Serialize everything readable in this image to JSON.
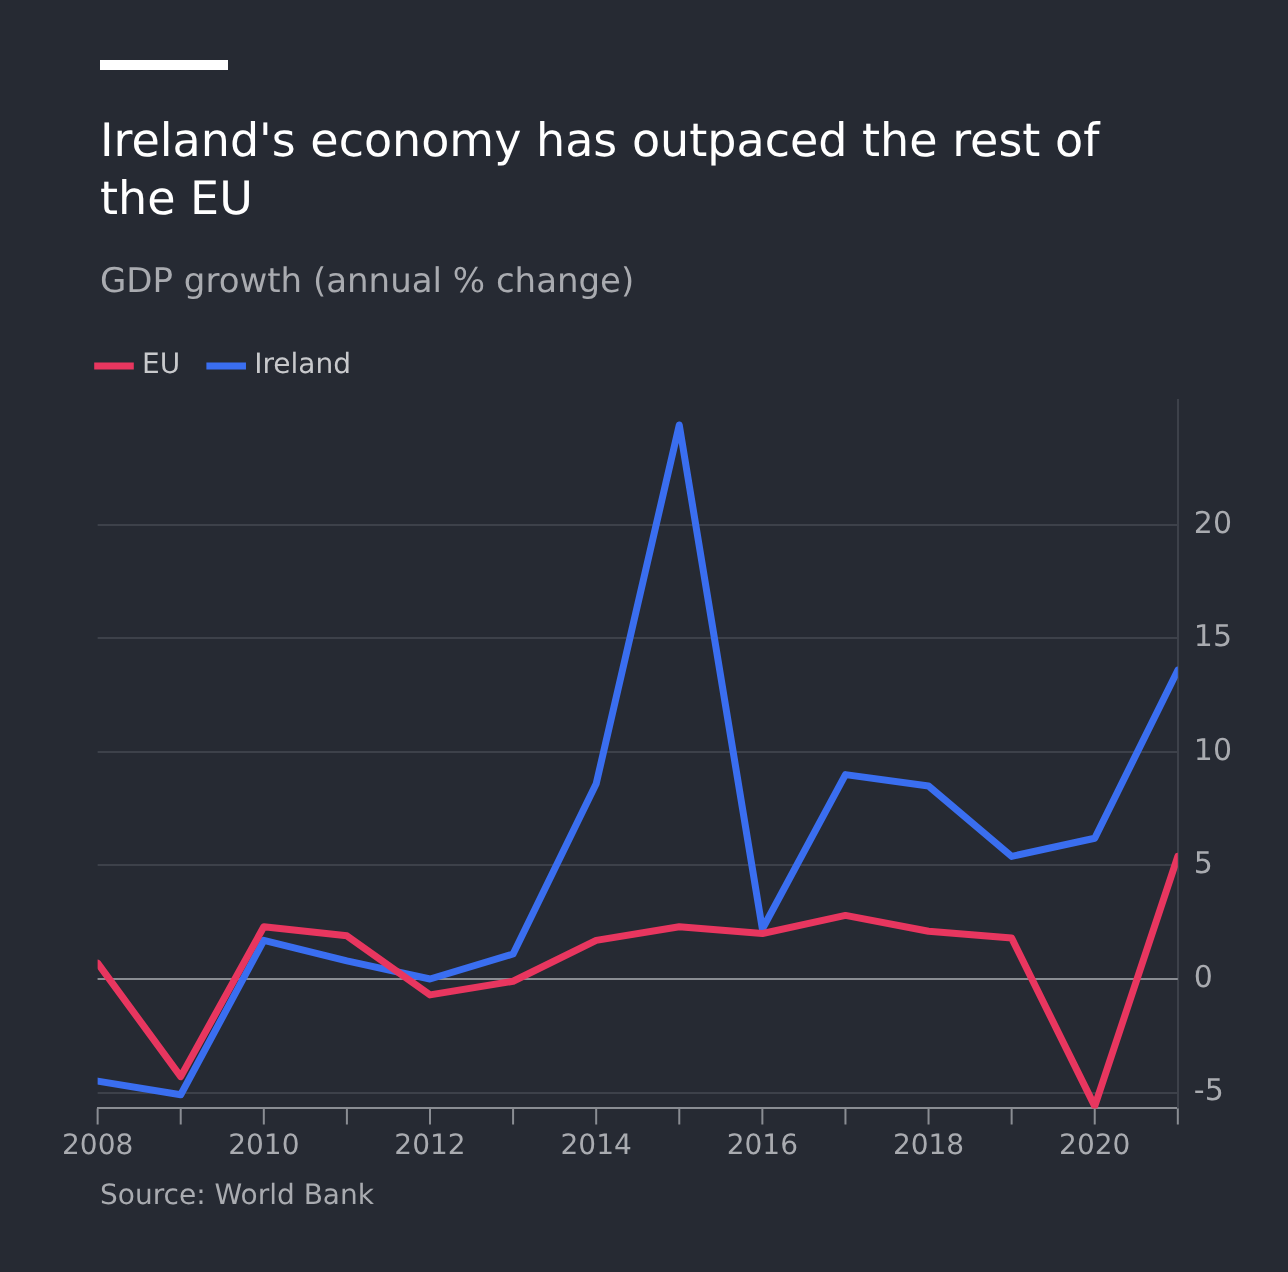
{
  "chart_data": {
    "type": "line",
    "title": "Ireland's economy has outpaced the rest of the EU",
    "subtitle": "GDP growth (annual % change)",
    "x": [
      2008,
      2009,
      2010,
      2011,
      2012,
      2013,
      2014,
      2015,
      2016,
      2017,
      2018,
      2019,
      2020,
      2021
    ],
    "series": [
      {
        "name": "EU",
        "color": "#e8365f",
        "values": [
          0.7,
          -4.3,
          2.3,
          1.9,
          -0.7,
          -0.1,
          1.7,
          2.3,
          2.0,
          2.8,
          2.1,
          1.8,
          -5.6,
          5.4
        ]
      },
      {
        "name": "Ireland",
        "color": "#3a6ef0",
        "values": [
          -4.5,
          -5.1,
          1.7,
          0.8,
          0.0,
          1.1,
          8.6,
          24.4,
          2.2,
          9.0,
          8.5,
          5.4,
          6.2,
          13.6
        ]
      }
    ],
    "xlim": [
      2008,
      2021
    ],
    "xticks": [
      2008,
      {
        "value": 2009,
        "label": null
      },
      2010,
      {
        "value": 2011,
        "label": null
      },
      2012,
      {
        "value": 2013,
        "label": null
      },
      2014,
      {
        "value": 2015,
        "label": null
      },
      2016,
      {
        "value": 2017,
        "label": null
      },
      2018,
      {
        "value": 2019,
        "label": null
      },
      2020,
      {
        "value": 2021,
        "label": null
      }
    ],
    "ylim": [
      -5.7,
      25.5
    ],
    "yticks": [
      -5,
      0,
      5,
      10,
      15,
      20
    ],
    "grid": "y",
    "legend": "top left",
    "marker": "none",
    "line_style": "solid",
    "annotations": [
      "Source: World Bank"
    ]
  }
}
